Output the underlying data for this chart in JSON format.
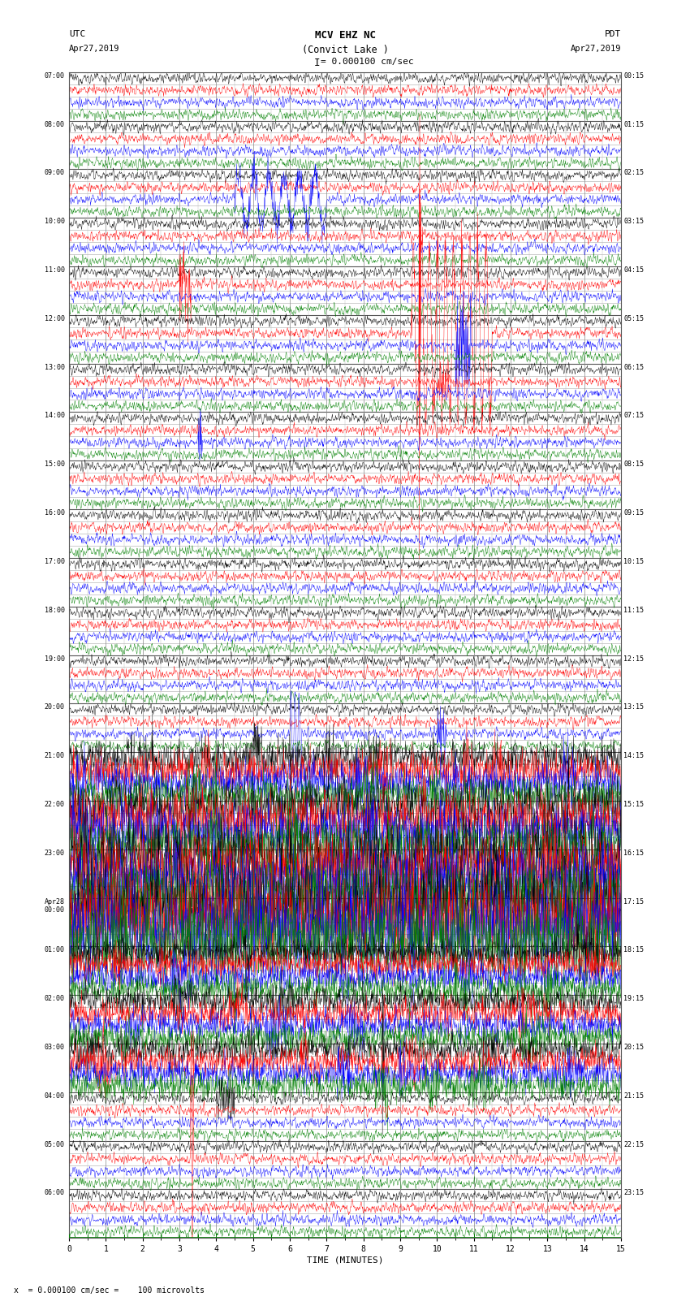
{
  "title_line1": "MCV EHZ NC",
  "title_line2": "(Convict Lake )",
  "title_line3": "I = 0.000100 cm/sec",
  "left_label_top": "UTC",
  "left_label_date": "Apr27,2019",
  "right_label_top": "PDT",
  "right_label_date": "Apr27,2019",
  "bottom_label": "TIME (MINUTES)",
  "bottom_note": "x  = 0.000100 cm/sec =    100 microvolts",
  "xlabel_ticks": [
    0,
    1,
    2,
    3,
    4,
    5,
    6,
    7,
    8,
    9,
    10,
    11,
    12,
    13,
    14,
    15
  ],
  "left_times": [
    "07:00",
    "",
    "",
    "",
    "08:00",
    "",
    "",
    "",
    "09:00",
    "",
    "",
    "",
    "10:00",
    "",
    "",
    "",
    "11:00",
    "",
    "",
    "",
    "12:00",
    "",
    "",
    "",
    "13:00",
    "",
    "",
    "",
    "14:00",
    "",
    "",
    "",
    "15:00",
    "",
    "",
    "",
    "16:00",
    "",
    "",
    "",
    "17:00",
    "",
    "",
    "",
    "18:00",
    "",
    "",
    "",
    "19:00",
    "",
    "",
    "",
    "20:00",
    "",
    "",
    "",
    "21:00",
    "",
    "",
    "",
    "22:00",
    "",
    "",
    "",
    "23:00",
    "",
    "",
    "",
    "Apr28\n00:00",
    "",
    "",
    "",
    "01:00",
    "",
    "",
    "",
    "02:00",
    "",
    "",
    "",
    "03:00",
    "",
    "",
    "",
    "04:00",
    "",
    "",
    "",
    "05:00",
    "",
    "",
    "",
    "06:00",
    "",
    "",
    "",
    ""
  ],
  "right_times": [
    "00:15",
    "",
    "",
    "",
    "01:15",
    "",
    "",
    "",
    "02:15",
    "",
    "",
    "",
    "03:15",
    "",
    "",
    "",
    "04:15",
    "",
    "",
    "",
    "05:15",
    "",
    "",
    "",
    "06:15",
    "",
    "",
    "",
    "07:15",
    "",
    "",
    "",
    "08:15",
    "",
    "",
    "",
    "09:15",
    "",
    "",
    "",
    "10:15",
    "",
    "",
    "",
    "11:15",
    "",
    "",
    "",
    "12:15",
    "",
    "",
    "",
    "13:15",
    "",
    "",
    "",
    "14:15",
    "",
    "",
    "",
    "15:15",
    "",
    "",
    "",
    "16:15",
    "",
    "",
    "",
    "17:15",
    "",
    "",
    "",
    "18:15",
    "",
    "",
    "",
    "19:15",
    "",
    "",
    "",
    "20:15",
    "",
    "",
    "",
    "21:15",
    "",
    "",
    "",
    "22:15",
    "",
    "",
    "",
    "23:15",
    "",
    "",
    "",
    ""
  ],
  "n_hours": 24,
  "n_subrows": 4,
  "n_minutes": 15,
  "samples_per_row": 1800,
  "background_color": "#ffffff",
  "grid_color": "#888888",
  "subrow_colors": [
    "black",
    "red",
    "blue",
    "green"
  ],
  "fig_width": 8.5,
  "fig_height": 16.13,
  "noise_amp": 0.04,
  "signal_display_scale": 0.35
}
